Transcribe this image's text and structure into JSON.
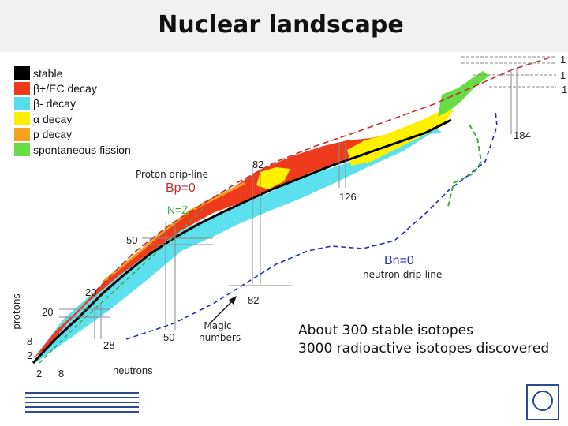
{
  "title": "Nuclear landscape",
  "legend": [
    {
      "label": "stable",
      "color": "#000000"
    },
    {
      "label": "β+/EC decay",
      "color": "#ee3a1a"
    },
    {
      "label": "β- decay",
      "color": "#55ddee"
    },
    {
      "label": "α decay",
      "color": "#ffee00"
    },
    {
      "label": "p decay",
      "color": "#f8a020"
    },
    {
      "label": "spontaneous fission",
      "color": "#66dd44"
    }
  ],
  "labels": {
    "proton_dripline": "Proton drip-line",
    "bp": "Bp=0",
    "nz": "N=Z",
    "neutron_dripline": "neutron drip-line",
    "bn": "Bn=0",
    "magic_numbers": "Magic numbers",
    "protons": "protons",
    "neutrons": "neutrons"
  },
  "magic_numbers": {
    "n82_top": "82",
    "n126": "126",
    "n184": "184",
    "z50": "50",
    "z82": "82",
    "z20": "20",
    "n28": "28",
    "n50": "50",
    "z8": "8",
    "z2": "2",
    "z20_left": "20",
    "n2": "2",
    "n8": "8",
    "edge_top": "1",
    "edge_mid": "1",
    "edge_low": "1"
  },
  "notes": {
    "line1": "About 300 stable isotopes",
    "line2": "3000 radioactive isotopes discovered"
  },
  "logos": {
    "isolde": "ISOLDE",
    "cern": "CERN"
  }
}
